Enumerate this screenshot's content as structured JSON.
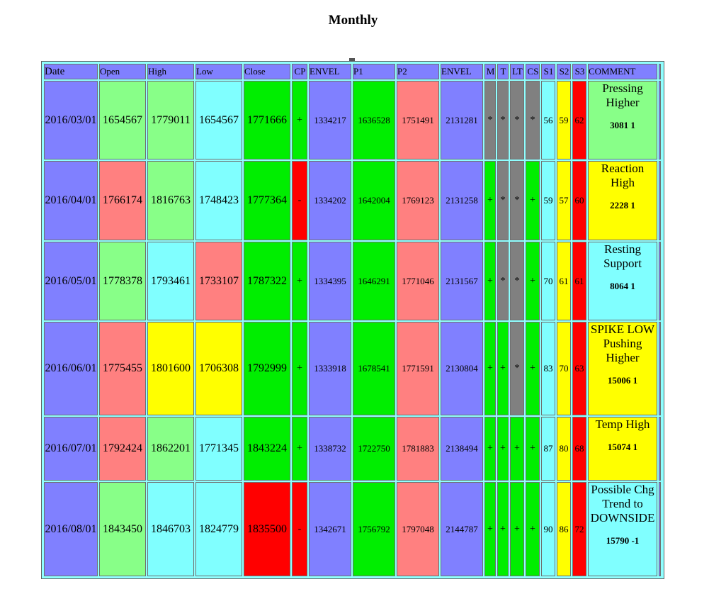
{
  "title": "Monthly",
  "columns": [
    "Date",
    "Open",
    "High",
    "Low",
    "Close",
    "CP",
    "ENVEL",
    "P1",
    "P2",
    "ENVEL",
    "M",
    "T",
    "LT",
    "CS",
    "S1",
    "S2",
    "S3",
    "COMMENT"
  ],
  "colors": {
    "blue": "#8080ff",
    "green": "#00ee00",
    "light_green": "#88ff88",
    "salmon": "#ff8080",
    "cyan": "#80ffff",
    "yellow": "#ffff00",
    "red": "#ff0000",
    "gray": "#808080"
  },
  "rows": [
    {
      "date": "2016/03/01",
      "open": "1654567",
      "high": "1779011",
      "low": "1654567",
      "close": "1771666",
      "cp": "+",
      "envel1": "1334217",
      "p1": "1636528",
      "p2": "1751491",
      "envel2": "2131281",
      "m": "*",
      "t": "*",
      "lt": "*",
      "cs": "*",
      "s1": "56",
      "s2": "59",
      "s3": "62",
      "comment": "Pressing Higher",
      "code": "3081 1"
    },
    {
      "date": "2016/04/01",
      "open": "1766174",
      "high": "1816763",
      "low": "1748423",
      "close": "1777364",
      "cp": "-",
      "envel1": "1334202",
      "p1": "1642004",
      "p2": "1769123",
      "envel2": "2131258",
      "m": "+",
      "t": "*",
      "lt": "*",
      "cs": "+",
      "s1": "59",
      "s2": "57",
      "s3": "60",
      "comment": "Reaction High",
      "code": "2228 1"
    },
    {
      "date": "2016/05/01",
      "open": "1778378",
      "high": "1793461",
      "low": "1733107",
      "close": "1787322",
      "cp": "+",
      "envel1": "1334395",
      "p1": "1646291",
      "p2": "1771046",
      "envel2": "2131567",
      "m": "+",
      "t": "*",
      "lt": "*",
      "cs": "+",
      "s1": "70",
      "s2": "61",
      "s3": "61",
      "comment": "Resting Support",
      "code": "8064 1"
    },
    {
      "date": "2016/06/01",
      "open": "1775455",
      "high": "1801600",
      "low": "1706308",
      "close": "1792999",
      "cp": "+",
      "envel1": "1333918",
      "p1": "1678541",
      "p2": "1771591",
      "envel2": "2130804",
      "m": "+",
      "t": "+",
      "lt": "*",
      "cs": "+",
      "s1": "83",
      "s2": "70",
      "s3": "63",
      "comment": "SPIKE LOW Pushing Higher",
      "code": "15006 1"
    },
    {
      "date": "2016/07/01",
      "open": "1792424",
      "high": "1862201",
      "low": "1771345",
      "close": "1843224",
      "cp": "+",
      "envel1": "1338732",
      "p1": "1722750",
      "p2": "1781883",
      "envel2": "2138494",
      "m": "+",
      "t": "+",
      "lt": "+",
      "cs": "+",
      "s1": "87",
      "s2": "80",
      "s3": "68",
      "comment": "Temp High",
      "code": "15074 1"
    },
    {
      "date": "2016/08/01",
      "open": "1843450",
      "high": "1846703",
      "low": "1824779",
      "close": "1835500",
      "cp": "-",
      "envel1": "1342671",
      "p1": "1756792",
      "p2": "1797048",
      "envel2": "2144787",
      "m": "+",
      "t": "+",
      "lt": "+",
      "cs": "+",
      "s1": "90",
      "s2": "86",
      "s3": "72",
      "comment": "Possible Chg Trend to DOWNSIDE",
      "code": "15790 -1"
    }
  ]
}
